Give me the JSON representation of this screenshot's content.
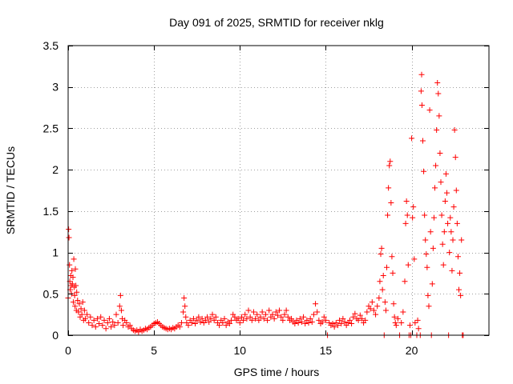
{
  "chart_data": {
    "type": "scatter",
    "title": "Day 091 of 2025, SRMTID for receiver nklg",
    "xlabel": "GPS time / hours",
    "ylabel": "SRMTID / TECUs",
    "xlim": [
      0,
      24.5
    ],
    "ylim": [
      0,
      3.5
    ],
    "grid": true,
    "marker": "+",
    "colors": {
      "series": "#ff0000",
      "grid": "#a0a0a0",
      "axis": "#000000"
    },
    "xticks": [
      {
        "value": 0,
        "label": "0"
      },
      {
        "value": 5,
        "label": "5"
      },
      {
        "value": 10,
        "label": "10"
      },
      {
        "value": 15,
        "label": "15"
      },
      {
        "value": 20,
        "label": "20"
      }
    ],
    "yticks": [
      {
        "value": 0,
        "label": "0"
      },
      {
        "value": 0.5,
        "label": "0.5"
      },
      {
        "value": 1,
        "label": "1"
      },
      {
        "value": 1.5,
        "label": "1.5"
      },
      {
        "value": 2,
        "label": "2"
      },
      {
        "value": 2.5,
        "label": "2.5"
      },
      {
        "value": 3,
        "label": "3"
      },
      {
        "value": 3.5,
        "label": "3.5"
      }
    ],
    "series": [
      {
        "name": "SRMTID",
        "points": [
          [
            0.0,
            0.45
          ],
          [
            0.03,
            1.28
          ],
          [
            0.05,
            1.18
          ],
          [
            0.08,
            0.85
          ],
          [
            0.1,
            0.65
          ],
          [
            0.12,
            0.55
          ],
          [
            0.15,
            0.72
          ],
          [
            0.18,
            0.6
          ],
          [
            0.2,
            0.5
          ],
          [
            0.22,
            0.78
          ],
          [
            0.25,
            0.62
          ],
          [
            0.28,
            0.7
          ],
          [
            0.3,
            0.4
          ],
          [
            0.33,
            0.92
          ],
          [
            0.35,
            0.58
          ],
          [
            0.38,
            0.48
          ],
          [
            0.4,
            0.35
          ],
          [
            0.42,
            0.8
          ],
          [
            0.45,
            0.6
          ],
          [
            0.48,
            0.3
          ],
          [
            0.5,
            0.52
          ],
          [
            0.55,
            0.42
          ],
          [
            0.6,
            0.28
          ],
          [
            0.65,
            0.38
          ],
          [
            0.7,
            0.22
          ],
          [
            0.75,
            0.32
          ],
          [
            0.8,
            0.25
          ],
          [
            0.85,
            0.4
          ],
          [
            0.9,
            0.18
          ],
          [
            0.95,
            0.3
          ],
          [
            1.0,
            0.2
          ],
          [
            1.1,
            0.25
          ],
          [
            1.2,
            0.15
          ],
          [
            1.3,
            0.22
          ],
          [
            1.4,
            0.12
          ],
          [
            1.5,
            0.18
          ],
          [
            1.6,
            0.1
          ],
          [
            1.7,
            0.2
          ],
          [
            1.8,
            0.14
          ],
          [
            1.9,
            0.22
          ],
          [
            2.0,
            0.12
          ],
          [
            2.1,
            0.18
          ],
          [
            2.2,
            0.08
          ],
          [
            2.3,
            0.15
          ],
          [
            2.4,
            0.2
          ],
          [
            2.5,
            0.1
          ],
          [
            2.6,
            0.16
          ],
          [
            2.7,
            0.12
          ],
          [
            2.8,
            0.25
          ],
          [
            2.9,
            0.15
          ],
          [
            3.0,
            0.35
          ],
          [
            3.05,
            0.48
          ],
          [
            3.1,
            0.3
          ],
          [
            3.15,
            0.2
          ],
          [
            3.2,
            0.12
          ],
          [
            3.3,
            0.18
          ],
          [
            3.4,
            0.15
          ],
          [
            3.5,
            0.1
          ],
          [
            3.6,
            0.12
          ],
          [
            3.7,
            0.08
          ],
          [
            3.8,
            0.06
          ],
          [
            3.9,
            0.05
          ],
          [
            4.0,
            0.06
          ],
          [
            4.1,
            0.04
          ],
          [
            4.2,
            0.07
          ],
          [
            4.3,
            0.05
          ],
          [
            4.4,
            0.06
          ],
          [
            4.5,
            0.08
          ],
          [
            4.6,
            0.07
          ],
          [
            4.7,
            0.09
          ],
          [
            4.8,
            0.1
          ],
          [
            4.9,
            0.12
          ],
          [
            5.0,
            0.14
          ],
          [
            5.1,
            0.15
          ],
          [
            5.2,
            0.16
          ],
          [
            5.3,
            0.14
          ],
          [
            5.4,
            0.12
          ],
          [
            5.5,
            0.1
          ],
          [
            5.6,
            0.09
          ],
          [
            5.7,
            0.08
          ],
          [
            5.8,
            0.07
          ],
          [
            5.9,
            0.08
          ],
          [
            6.0,
            0.07
          ],
          [
            6.1,
            0.09
          ],
          [
            6.2,
            0.08
          ],
          [
            6.3,
            0.1
          ],
          [
            6.4,
            0.12
          ],
          [
            6.5,
            0.1
          ],
          [
            6.6,
            0.15
          ],
          [
            6.7,
            0.28
          ],
          [
            6.75,
            0.45
          ],
          [
            6.8,
            0.35
          ],
          [
            6.85,
            0.22
          ],
          [
            6.9,
            0.15
          ],
          [
            7.0,
            0.12
          ],
          [
            7.1,
            0.18
          ],
          [
            7.2,
            0.15
          ],
          [
            7.3,
            0.2
          ],
          [
            7.4,
            0.14
          ],
          [
            7.5,
            0.18
          ],
          [
            7.6,
            0.22
          ],
          [
            7.7,
            0.16
          ],
          [
            7.8,
            0.2
          ],
          [
            7.9,
            0.15
          ],
          [
            8.0,
            0.18
          ],
          [
            8.1,
            0.22
          ],
          [
            8.2,
            0.16
          ],
          [
            8.3,
            0.2
          ],
          [
            8.4,
            0.25
          ],
          [
            8.5,
            0.18
          ],
          [
            8.6,
            0.22
          ],
          [
            8.7,
            0.15
          ],
          [
            8.8,
            0.12
          ],
          [
            8.9,
            0.18
          ],
          [
            9.0,
            0.15
          ],
          [
            9.1,
            0.2
          ],
          [
            9.2,
            0.12
          ],
          [
            9.3,
            0.16
          ],
          [
            9.4,
            0.14
          ],
          [
            9.5,
            0.18
          ],
          [
            9.6,
            0.25
          ],
          [
            9.7,
            0.22
          ],
          [
            9.8,
            0.18
          ],
          [
            9.9,
            0.2
          ],
          [
            10.0,
            0.15
          ],
          [
            10.1,
            0.22
          ],
          [
            10.2,
            0.18
          ],
          [
            10.3,
            0.25
          ],
          [
            10.4,
            0.2
          ],
          [
            10.5,
            0.3
          ],
          [
            10.6,
            0.22
          ],
          [
            10.7,
            0.18
          ],
          [
            10.8,
            0.28
          ],
          [
            10.9,
            0.2
          ],
          [
            11.0,
            0.25
          ],
          [
            11.1,
            0.18
          ],
          [
            11.2,
            0.22
          ],
          [
            11.3,
            0.28
          ],
          [
            11.4,
            0.2
          ],
          [
            11.5,
            0.25
          ],
          [
            11.6,
            0.18
          ],
          [
            11.7,
            0.3
          ],
          [
            11.8,
            0.22
          ],
          [
            11.9,
            0.25
          ],
          [
            12.0,
            0.2
          ],
          [
            12.1,
            0.28
          ],
          [
            12.2,
            0.24
          ],
          [
            12.3,
            0.3
          ],
          [
            12.4,
            0.22
          ],
          [
            12.5,
            0.18
          ],
          [
            12.6,
            0.25
          ],
          [
            12.7,
            0.3
          ],
          [
            12.8,
            0.22
          ],
          [
            12.9,
            0.18
          ],
          [
            13.0,
            0.2
          ],
          [
            13.1,
            0.16
          ],
          [
            13.2,
            0.14
          ],
          [
            13.3,
            0.18
          ],
          [
            13.4,
            0.15
          ],
          [
            13.5,
            0.2
          ],
          [
            13.6,
            0.16
          ],
          [
            13.7,
            0.22
          ],
          [
            13.8,
            0.14
          ],
          [
            13.9,
            0.18
          ],
          [
            14.0,
            0.15
          ],
          [
            14.1,
            0.2
          ],
          [
            14.2,
            0.16
          ],
          [
            14.3,
            0.25
          ],
          [
            14.4,
            0.38
          ],
          [
            14.5,
            0.28
          ],
          [
            14.6,
            0.18
          ],
          [
            14.7,
            0.14
          ],
          [
            14.8,
            0.16
          ],
          [
            14.9,
            0.22
          ],
          [
            15.0,
            0.18
          ],
          [
            15.1,
            0.0
          ],
          [
            15.2,
            0.15
          ],
          [
            15.3,
            0.12
          ],
          [
            15.4,
            0.14
          ],
          [
            15.5,
            0.1
          ],
          [
            15.6,
            0.15
          ],
          [
            15.7,
            0.12
          ],
          [
            15.8,
            0.18
          ],
          [
            15.9,
            0.14
          ],
          [
            16.0,
            0.2
          ],
          [
            16.1,
            0.16
          ],
          [
            16.2,
            0.12
          ],
          [
            16.3,
            0.15
          ],
          [
            16.4,
            0.18
          ],
          [
            16.5,
            0.14
          ],
          [
            16.6,
            0.22
          ],
          [
            16.7,
            0.26
          ],
          [
            16.8,
            0.2
          ],
          [
            16.9,
            0.18
          ],
          [
            17.0,
            0.24
          ],
          [
            17.1,
            0.2
          ],
          [
            17.2,
            0.15
          ],
          [
            17.3,
            0.18
          ],
          [
            17.4,
            0.28
          ],
          [
            17.5,
            0.35
          ],
          [
            17.6,
            0.32
          ],
          [
            17.7,
            0.4
          ],
          [
            17.8,
            0.3
          ],
          [
            17.9,
            0.25
          ],
          [
            18.0,
            0.35
          ],
          [
            18.1,
            0.45
          ],
          [
            18.15,
            0.65
          ],
          [
            18.2,
            0.98
          ],
          [
            18.25,
            1.05
          ],
          [
            18.3,
            0.55
          ],
          [
            18.35,
            0.72
          ],
          [
            18.4,
            0.0
          ],
          [
            18.45,
            0.4
          ],
          [
            18.5,
            0.3
          ],
          [
            18.55,
            0.82
          ],
          [
            18.6,
            1.45
          ],
          [
            18.65,
            1.78
          ],
          [
            18.7,
            2.05
          ],
          [
            18.75,
            2.1
          ],
          [
            18.8,
            1.6
          ],
          [
            18.85,
            0.95
          ],
          [
            18.9,
            0.75
          ],
          [
            18.95,
            0.38
          ],
          [
            19.0,
            0.22
          ],
          [
            19.05,
            0.15
          ],
          [
            19.1,
            0.12
          ],
          [
            19.2,
            0.2
          ],
          [
            19.3,
            0.0
          ],
          [
            19.4,
            0.15
          ],
          [
            19.5,
            0.28
          ],
          [
            19.6,
            0.65
          ],
          [
            19.65,
            1.35
          ],
          [
            19.7,
            1.62
          ],
          [
            19.75,
            1.45
          ],
          [
            19.8,
            0.85
          ],
          [
            19.85,
            0.0
          ],
          [
            19.9,
            0.12
          ],
          [
            19.95,
            0.0
          ],
          [
            20.0,
            2.38
          ],
          [
            20.05,
            1.42
          ],
          [
            20.1,
            1.55
          ],
          [
            20.15,
            0.92
          ],
          [
            20.2,
            0.15
          ],
          [
            20.3,
            0.0
          ],
          [
            20.35,
            0.18
          ],
          [
            20.4,
            0.08
          ],
          [
            20.5,
            0.0
          ],
          [
            20.55,
            2.95
          ],
          [
            20.58,
            3.15
          ],
          [
            20.6,
            2.78
          ],
          [
            20.65,
            2.35
          ],
          [
            20.7,
            1.98
          ],
          [
            20.75,
            1.45
          ],
          [
            20.8,
            1.15
          ],
          [
            20.85,
            0.98
          ],
          [
            20.9,
            0.82
          ],
          [
            20.95,
            0.48
          ],
          [
            21.0,
            0.35
          ],
          [
            21.05,
            2.72
          ],
          [
            21.1,
            1.25
          ],
          [
            21.15,
            0.0
          ],
          [
            21.2,
            0.62
          ],
          [
            21.25,
            1.05
          ],
          [
            21.3,
            1.42
          ],
          [
            21.35,
            1.78
          ],
          [
            21.4,
            2.05
          ],
          [
            21.45,
            2.48
          ],
          [
            21.5,
            3.05
          ],
          [
            21.55,
            2.92
          ],
          [
            21.6,
            2.65
          ],
          [
            21.65,
            2.2
          ],
          [
            21.7,
            1.85
          ],
          [
            21.75,
            1.45
          ],
          [
            21.8,
            1.1
          ],
          [
            21.85,
            0.85
          ],
          [
            21.9,
            1.25
          ],
          [
            21.95,
            1.62
          ],
          [
            22.0,
            1.95
          ],
          [
            22.05,
            1.72
          ],
          [
            22.1,
            1.35
          ],
          [
            22.15,
            0.0
          ],
          [
            22.2,
            1.0
          ],
          [
            22.25,
            1.42
          ],
          [
            22.3,
            1.25
          ],
          [
            22.35,
            0.78
          ],
          [
            22.4,
            1.15
          ],
          [
            22.45,
            1.55
          ],
          [
            22.5,
            2.48
          ],
          [
            22.55,
            2.15
          ],
          [
            22.6,
            1.75
          ],
          [
            22.65,
            1.35
          ],
          [
            22.7,
            0.95
          ],
          [
            22.75,
            0.55
          ],
          [
            22.8,
            0.75
          ],
          [
            22.85,
            0.48
          ],
          [
            22.9,
            1.15
          ],
          [
            22.95,
            0.0
          ],
          [
            23.0,
            0.0
          ]
        ]
      }
    ]
  }
}
